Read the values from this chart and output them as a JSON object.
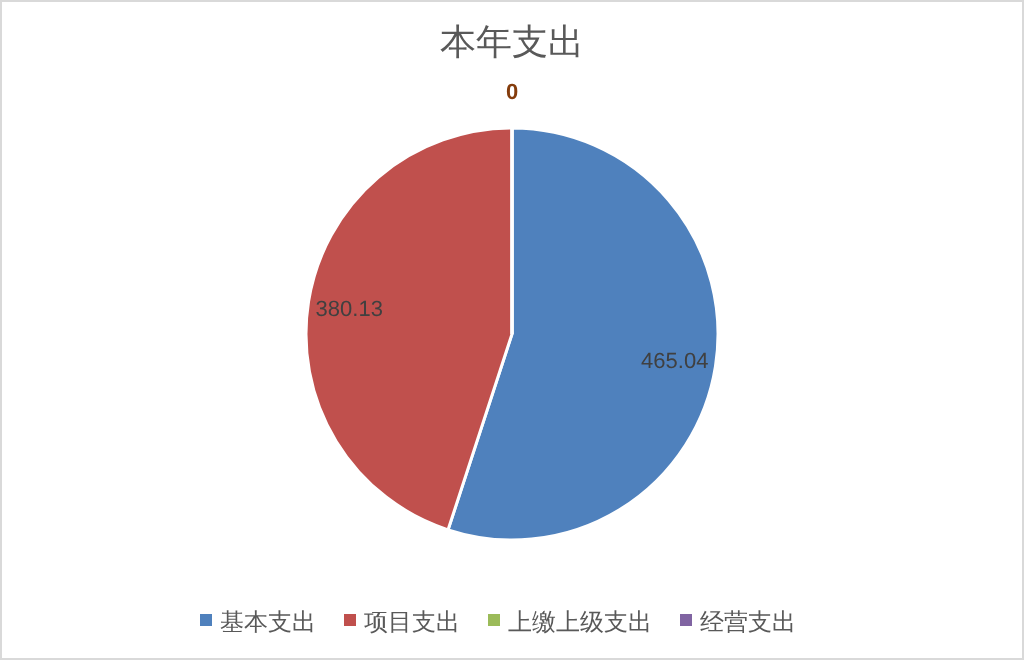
{
  "chart_data": {
    "type": "pie",
    "title": "本年支出",
    "categories": [
      "基本支出",
      "项目支出",
      "上缴上级支出",
      "经营支出"
    ],
    "values": [
      465.04,
      380.13,
      0,
      0
    ],
    "colors": [
      "#4f81bd",
      "#c0504d",
      "#9bbb59",
      "#8064a2"
    ],
    "value_labels": [
      "465.04",
      "380.13",
      "0",
      null
    ],
    "legend": "bottom"
  }
}
